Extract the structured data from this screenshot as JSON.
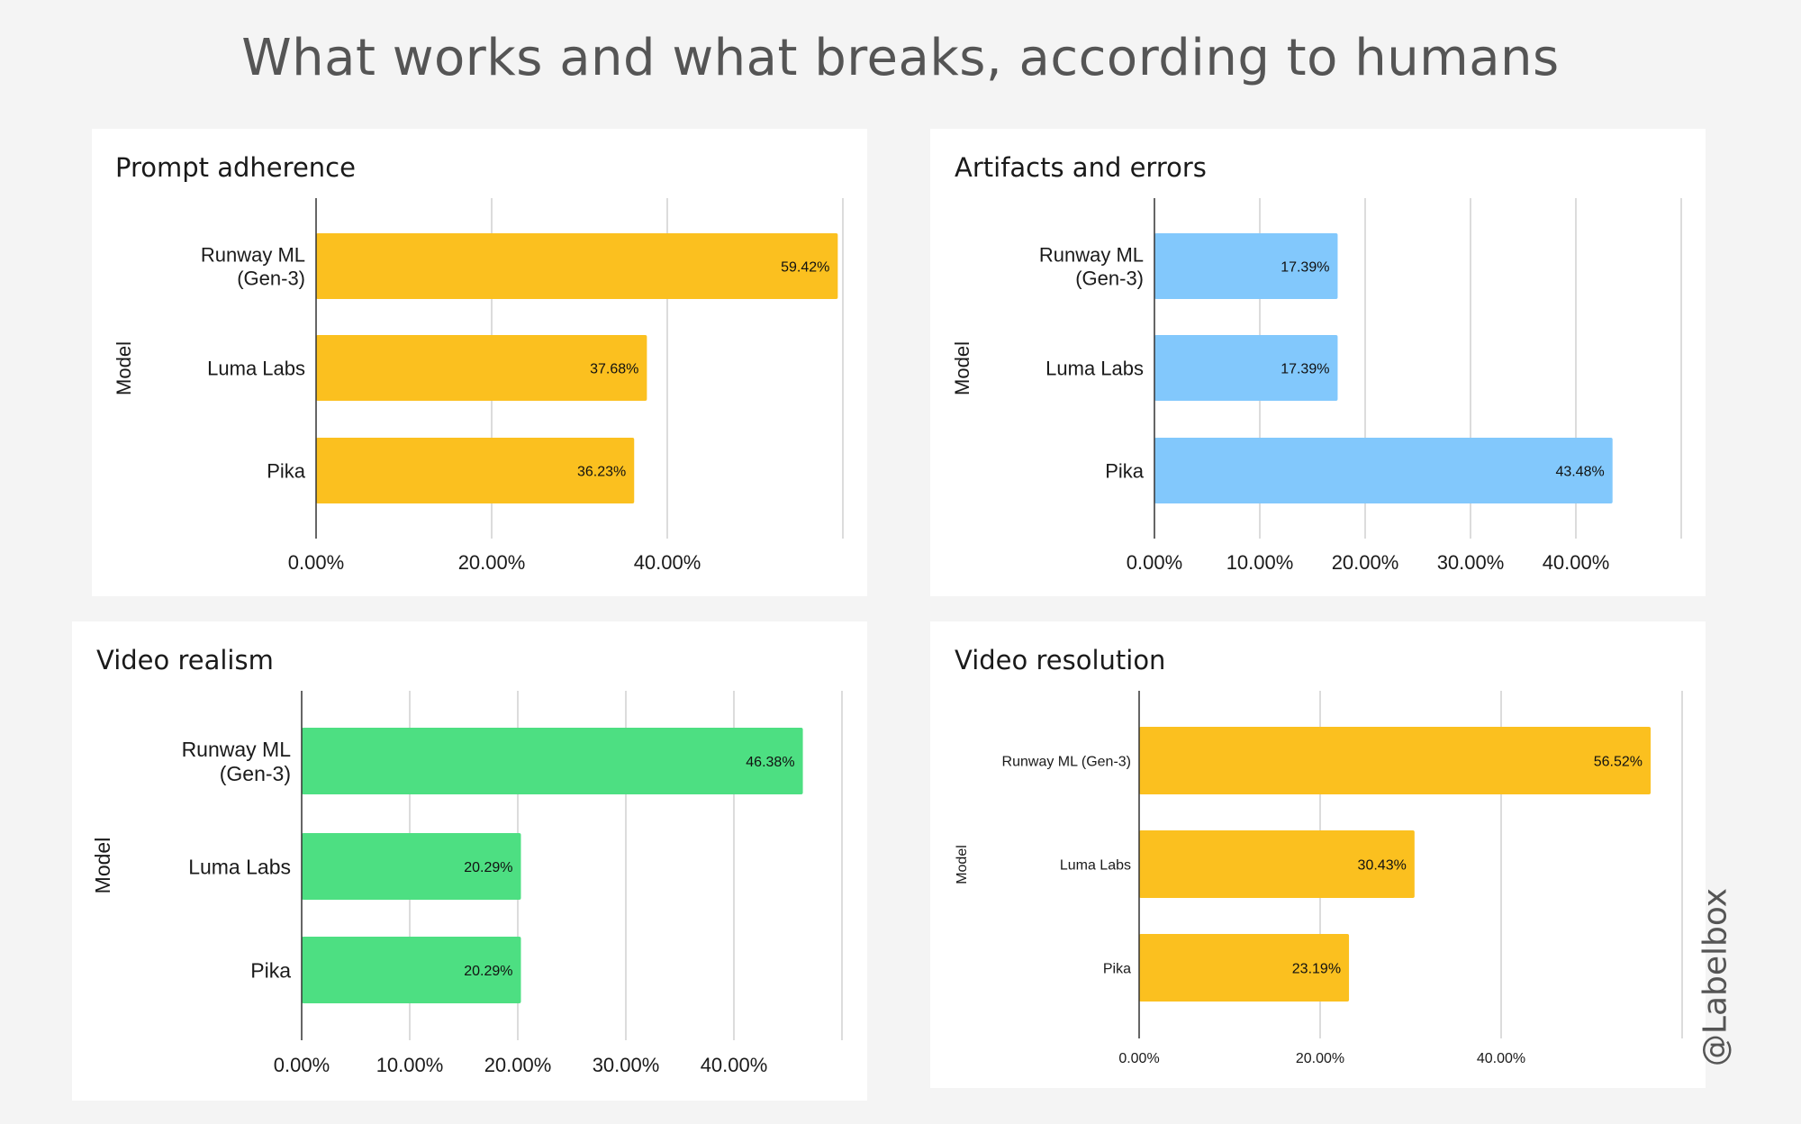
{
  "page": {
    "title": "What works and what breaks, according to humans",
    "watermark": "@Labelbox"
  },
  "chart_data": [
    {
      "type": "bar",
      "orientation": "horizontal",
      "title": "Prompt adherence",
      "ylabel": "Model",
      "xlabel": "",
      "categories": [
        "Runway ML (Gen-3)",
        "Luma Labs",
        "Pika"
      ],
      "category_lines": [
        [
          "Runway ML",
          "(Gen-3)"
        ],
        [
          "Luma Labs"
        ],
        [
          "Pika"
        ]
      ],
      "values": [
        59.42,
        37.68,
        36.23
      ],
      "data_labels": [
        "59.42%",
        "37.68%",
        "36.23%"
      ],
      "xlim": [
        0,
        60
      ],
      "ticks": [
        0,
        20,
        40
      ],
      "tick_labels": [
        "0.00%",
        "20.00%",
        "40.00%"
      ],
      "gridlines": [
        20,
        40,
        60
      ],
      "color": "#fbc01f",
      "grid": true
    },
    {
      "type": "bar",
      "orientation": "horizontal",
      "title": "Artifacts and errors",
      "ylabel": "Model",
      "xlabel": "",
      "categories": [
        "Runway ML (Gen-3)",
        "Luma Labs",
        "Pika"
      ],
      "category_lines": [
        [
          "Runway ML",
          "(Gen-3)"
        ],
        [
          "Luma Labs"
        ],
        [
          "Pika"
        ]
      ],
      "values": [
        17.39,
        17.39,
        43.48
      ],
      "data_labels": [
        "17.39%",
        "17.39%",
        "43.48%"
      ],
      "xlim": [
        0,
        50
      ],
      "ticks": [
        0,
        10,
        20,
        30,
        40
      ],
      "tick_labels": [
        "0.00%",
        "10.00%",
        "20.00%",
        "30.00%",
        "40.00%"
      ],
      "gridlines": [
        10,
        20,
        30,
        40,
        50
      ],
      "color": "#82c8fc",
      "grid": true
    },
    {
      "type": "bar",
      "orientation": "horizontal",
      "title": "Video realism",
      "ylabel": "Model",
      "xlabel": "",
      "categories": [
        "Runway ML (Gen-3)",
        "Luma Labs",
        "Pika"
      ],
      "category_lines": [
        [
          "Runway ML",
          "(Gen-3)"
        ],
        [
          "Luma Labs"
        ],
        [
          "Pika"
        ]
      ],
      "values": [
        46.38,
        20.29,
        20.29
      ],
      "data_labels": [
        "46.38%",
        "20.29%",
        "20.29%"
      ],
      "xlim": [
        0,
        50
      ],
      "ticks": [
        0,
        10,
        20,
        30,
        40
      ],
      "tick_labels": [
        "0.00%",
        "10.00%",
        "20.00%",
        "30.00%",
        "40.00%"
      ],
      "gridlines": [
        10,
        20,
        30,
        40,
        50
      ],
      "color": "#4ddf82",
      "grid": true
    },
    {
      "type": "bar",
      "orientation": "horizontal",
      "title": "Video resolution",
      "ylabel": "Model",
      "xlabel": "",
      "categories": [
        "Runway ML (Gen-3)",
        "Luma Labs",
        "Pika"
      ],
      "category_lines": [
        [
          "Runway ML (Gen-3)"
        ],
        [
          "Luma Labs"
        ],
        [
          "Pika"
        ]
      ],
      "values": [
        56.52,
        30.43,
        23.19
      ],
      "data_labels": [
        "56.52%",
        "30.43%",
        "23.19%"
      ],
      "xlim": [
        0,
        60
      ],
      "ticks": [
        0,
        20,
        40
      ],
      "tick_labels": [
        "0.00%",
        "20.00%",
        "40.00%"
      ],
      "gridlines": [
        20,
        40,
        60
      ],
      "color": "#fbc01f",
      "grid": true
    }
  ]
}
